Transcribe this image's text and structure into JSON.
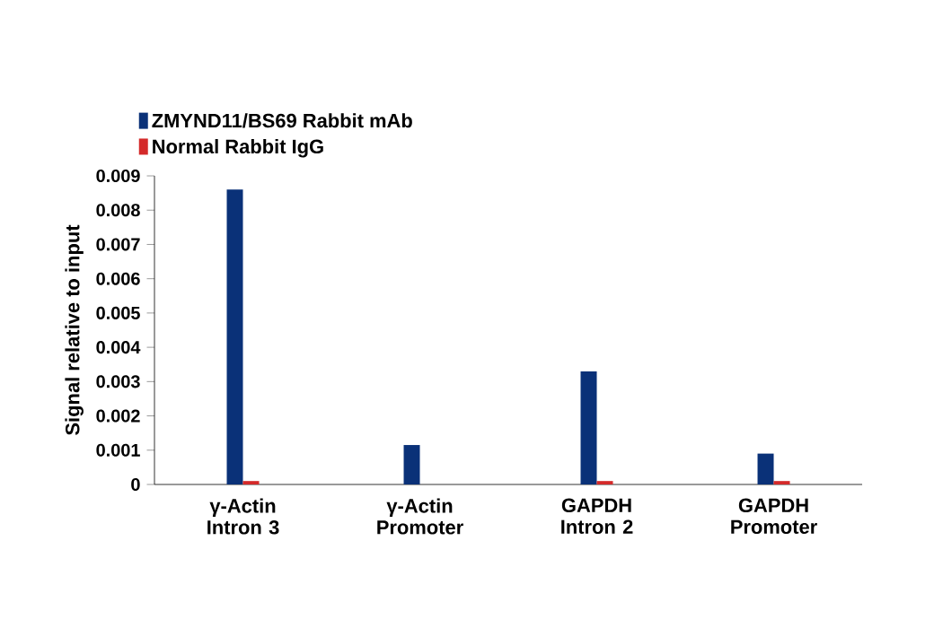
{
  "chart_data": {
    "type": "bar",
    "ylabel": "Signal relative to input",
    "categories": [
      "γ-Actin Intron 3",
      "γ-Actin Promoter",
      "GAPDH Intron 2",
      "GAPDH Promoter"
    ],
    "series": [
      {
        "name": "ZMYND11/BS69 Rabbit mAb",
        "color": "#0a3178",
        "values": [
          0.0086,
          0.00115,
          0.0033,
          0.0009
        ]
      },
      {
        "name": "Normal Rabbit IgG",
        "color": "#d42a2a",
        "values": [
          0.0001,
          0,
          0.0001,
          0.0001
        ]
      }
    ],
    "ylim": [
      0,
      0.009
    ],
    "yticks": [
      0,
      0.001,
      0.002,
      0.003,
      0.004,
      0.005,
      0.006,
      0.007,
      0.008,
      0.009
    ],
    "grid": false,
    "legend": "top left"
  }
}
